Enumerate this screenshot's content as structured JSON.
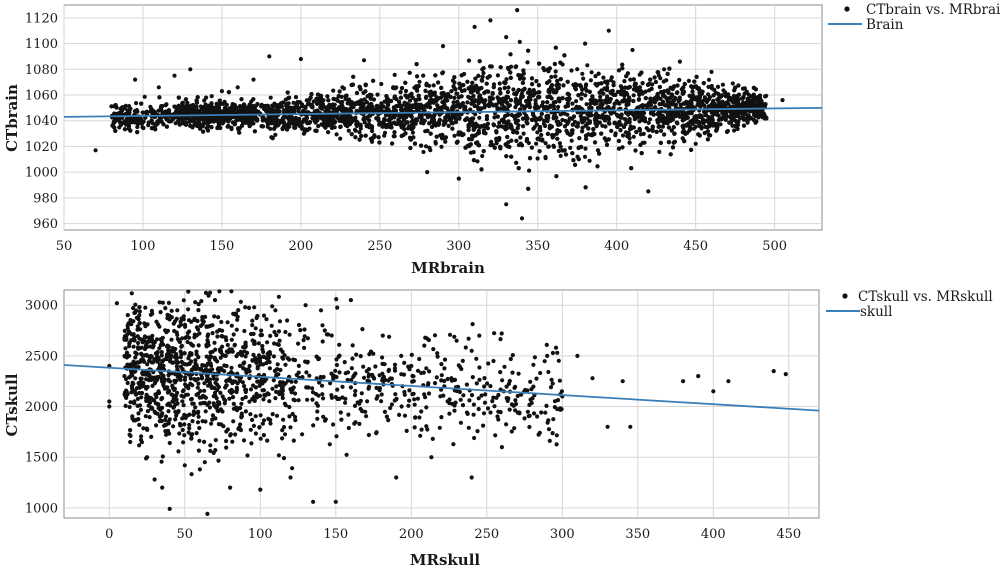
{
  "colors": {
    "points": "#111111",
    "fit_line": "#3a7fb8",
    "grid": "#d6d6d6",
    "frame": "#8c8c8c"
  },
  "chart_data": [
    {
      "type": "scatter",
      "xlabel": "MRbrain",
      "ylabel": "CTbrain",
      "xlim": [
        50,
        530
      ],
      "ylim": [
        955,
        1130
      ],
      "xticks": [
        50,
        100,
        150,
        200,
        250,
        300,
        350,
        400,
        450,
        500
      ],
      "yticks": [
        960,
        980,
        1000,
        1020,
        1040,
        1060,
        1080,
        1100,
        1120
      ],
      "grid": true,
      "legend_position": "outside-top-right",
      "legend": [
        "CTbrain vs. MRbrain",
        "Brain"
      ],
      "series": [
        {
          "name": "CTbrain vs. MRbrain",
          "kind": "points",
          "description_points": "dense cloud; centre near CT 1045, widest spread around MR 300-400",
          "approx_points": [
            [
              70,
              1017
            ],
            [
              85,
              1046
            ],
            [
              95,
              1072
            ],
            [
              110,
              1066
            ],
            [
              120,
              1075
            ],
            [
              130,
              1080
            ],
            [
              140,
              1058
            ],
            [
              150,
              1063
            ],
            [
              160,
              1066
            ],
            [
              170,
              1072
            ],
            [
              180,
              1090
            ],
            [
              200,
              1088
            ],
            [
              240,
              1087
            ],
            [
              290,
              1098
            ],
            [
              310,
              1113
            ],
            [
              320,
              1118
            ],
            [
              330,
              1105
            ],
            [
              337,
              1126
            ],
            [
              340,
              964
            ],
            [
              330,
              975
            ],
            [
              300,
              995
            ],
            [
              280,
              1000
            ],
            [
              380,
              1100
            ],
            [
              395,
              1110
            ],
            [
              410,
              1095
            ],
            [
              420,
              985
            ],
            [
              430,
              1080
            ],
            [
              440,
              1086
            ],
            [
              460,
              1078
            ],
            [
              480,
              1065
            ],
            [
              505,
              1056
            ]
          ]
        },
        {
          "name": "Brain",
          "kind": "line",
          "x": [
            50,
            530
          ],
          "y": [
            1043,
            1050
          ]
        }
      ]
    },
    {
      "type": "scatter",
      "xlabel": "MRskull",
      "ylabel": "CTskull",
      "xlim": [
        -30,
        470
      ],
      "ylim": [
        900,
        3150
      ],
      "xticks": [
        0,
        50,
        100,
        150,
        200,
        250,
        300,
        350,
        400,
        450
      ],
      "yticks": [
        1000,
        1500,
        2000,
        2500,
        3000
      ],
      "grid": true,
      "legend_position": "outside-top-right",
      "legend": [
        "CTskull vs. MRskull",
        "skull"
      ],
      "series": [
        {
          "name": "CTskull vs. MRskull",
          "kind": "points",
          "approx_points": [
            [
              0,
              2000
            ],
            [
              0,
              2050
            ],
            [
              0,
              2400
            ],
            [
              5,
              3020
            ],
            [
              10,
              2300
            ],
            [
              20,
              2980
            ],
            [
              25,
              1500
            ],
            [
              30,
              1280
            ],
            [
              35,
              1200
            ],
            [
              40,
              990
            ],
            [
              45,
              2950
            ],
            [
              50,
              1420
            ],
            [
              60,
              1380
            ],
            [
              65,
              940
            ],
            [
              70,
              3050
            ],
            [
              80,
              1200
            ],
            [
              90,
              2980
            ],
            [
              100,
              1180
            ],
            [
              110,
              2950
            ],
            [
              120,
              1300
            ],
            [
              130,
              3000
            ],
            [
              135,
              1060
            ],
            [
              150,
              1060
            ],
            [
              160,
              3050
            ],
            [
              190,
              1300
            ],
            [
              200,
              2400
            ],
            [
              230,
              2650
            ],
            [
              240,
              1300
            ],
            [
              245,
              2700
            ],
            [
              260,
              1600
            ],
            [
              290,
              2500
            ],
            [
              300,
              2100
            ],
            [
              310,
              2500
            ],
            [
              320,
              2280
            ],
            [
              330,
              1800
            ],
            [
              340,
              2250
            ],
            [
              345,
              1800
            ],
            [
              380,
              2250
            ],
            [
              390,
              2300
            ],
            [
              400,
              2150
            ],
            [
              410,
              2250
            ],
            [
              440,
              2350
            ],
            [
              448,
              2320
            ]
          ]
        },
        {
          "name": "skull",
          "kind": "line",
          "x": [
            -30,
            470
          ],
          "y": [
            2410,
            1960
          ]
        }
      ]
    }
  ]
}
